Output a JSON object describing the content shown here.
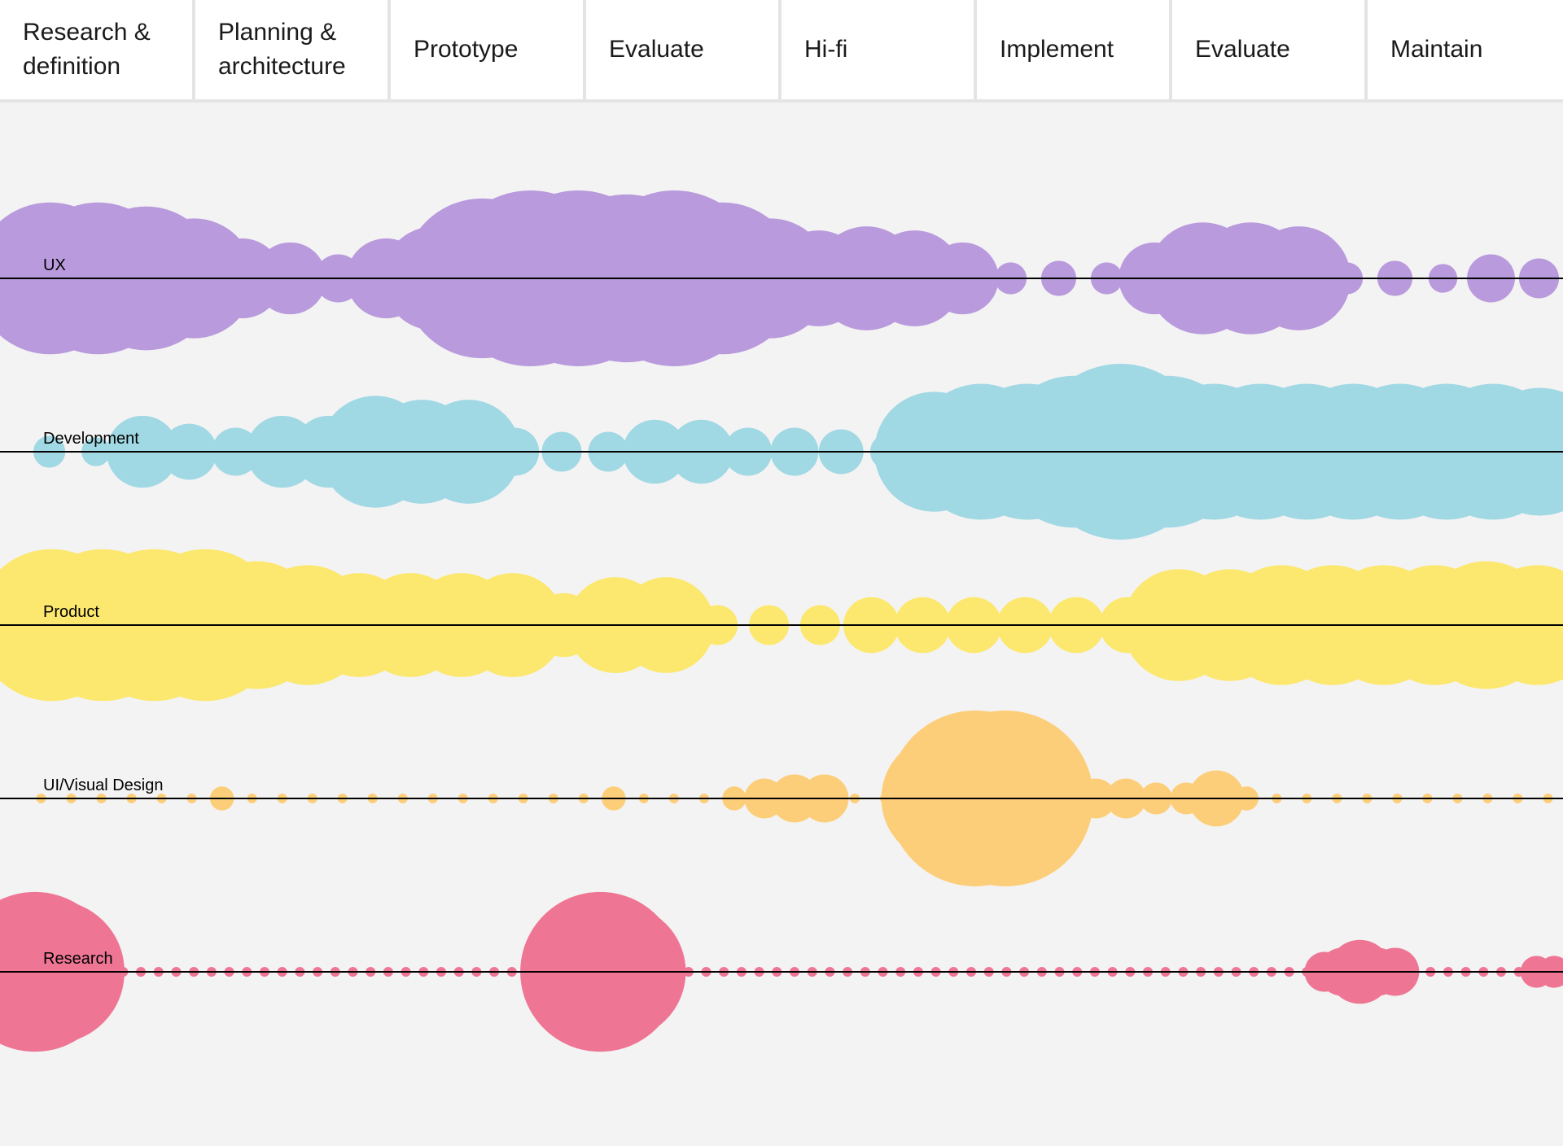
{
  "phases": [
    "Research &\ndefinition",
    "Planning &\narchitecture",
    "Prototype",
    "Evaluate",
    "Hi-fi",
    "Implement",
    "Evaluate",
    "Maintain"
  ],
  "lanes": [
    {
      "label": "UX",
      "color": "#b99adc",
      "intensity": [
        95,
        95,
        90,
        75,
        50,
        45,
        30,
        50,
        65,
        100,
        110,
        110,
        105,
        110,
        95,
        75,
        60,
        65,
        60,
        45,
        20,
        22,
        20,
        45,
        70,
        70,
        65,
        20,
        22,
        18,
        30,
        25
      ]
    },
    {
      "label": "Development",
      "color": "#a0d8e4",
      "intensity": [
        20,
        18,
        45,
        35,
        30,
        45,
        45,
        70,
        65,
        65,
        30,
        25,
        25,
        40,
        40,
        30,
        30,
        28,
        22,
        75,
        85,
        85,
        95,
        110,
        95,
        85,
        85,
        85,
        85,
        85,
        85,
        85,
        80
      ]
    },
    {
      "label": "Product",
      "color": "#fce86e",
      "intensity": [
        95,
        95,
        95,
        95,
        80,
        75,
        65,
        65,
        65,
        65,
        40,
        60,
        60,
        25,
        25,
        25,
        35,
        35,
        35,
        35,
        35,
        35,
        70,
        70,
        75,
        75,
        75,
        75,
        80,
        75
      ]
    },
    {
      "label": "UI/Visual Design",
      "color": "#fdce7a",
      "intensity": [
        6,
        6,
        6,
        6,
        6,
        6,
        15,
        6,
        6,
        6,
        6,
        6,
        6,
        6,
        6,
        6,
        6,
        6,
        6,
        15,
        6,
        6,
        6,
        15,
        25,
        30,
        30,
        6,
        6,
        6,
        80,
        110,
        110,
        55,
        35,
        25,
        25,
        20,
        20,
        35,
        15,
        6,
        6,
        6,
        6,
        6,
        6,
        6,
        6,
        6,
        6
      ]
    },
    {
      "label": "Research",
      "color": "#ee7694",
      "intensity": [
        100,
        90,
        25,
        25,
        2,
        2,
        2,
        2,
        2,
        2,
        2,
        2,
        2,
        2,
        2,
        2,
        2,
        2,
        2,
        2,
        2,
        2,
        2,
        2,
        2,
        2,
        2,
        2,
        2,
        2,
        2,
        45,
        100,
        85,
        2,
        2,
        2,
        2,
        2,
        2,
        2,
        2,
        2,
        2,
        2,
        2,
        2,
        2,
        2,
        2,
        2,
        2,
        2,
        2,
        2,
        2,
        2,
        2,
        2,
        2,
        2,
        2,
        2,
        2,
        2,
        2,
        2,
        2,
        2,
        2,
        2,
        2,
        2,
        25,
        30,
        40,
        30,
        30,
        2,
        2,
        2,
        2,
        2,
        2,
        2,
        20,
        20
      ]
    }
  ]
}
